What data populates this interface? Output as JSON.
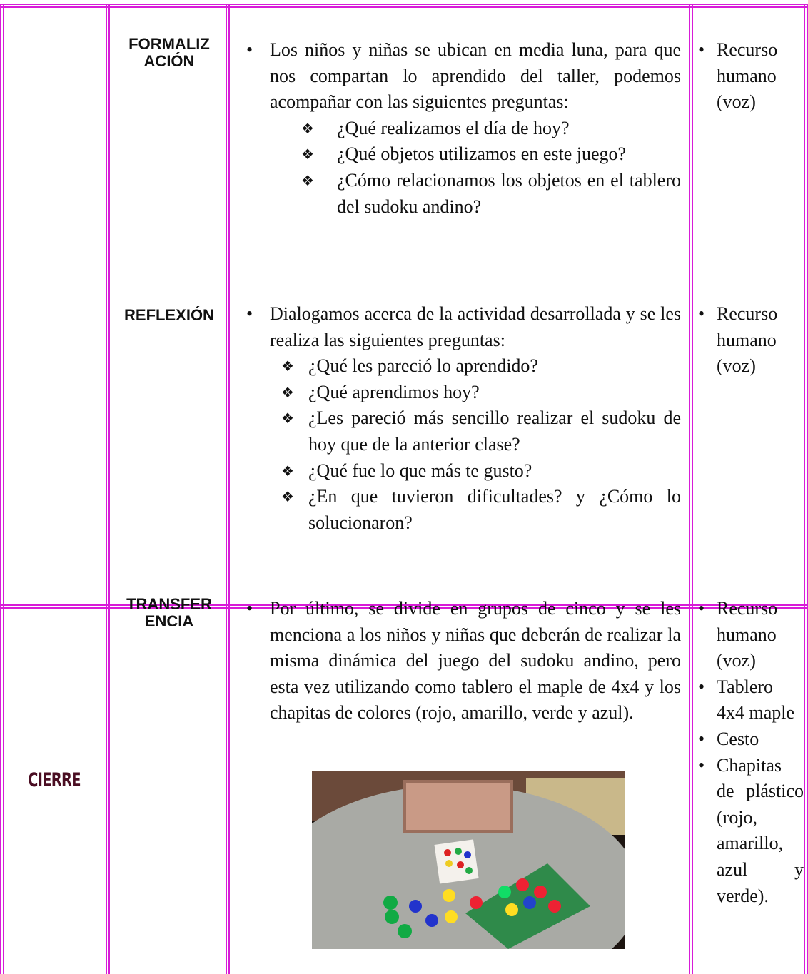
{
  "table": {
    "rows": [
      {
        "sections": [
          {
            "title_lines": [
              "FORMALIZ",
              "ACIÓN"
            ],
            "text": "Los niños y niñas se ubican en media luna, para que nos compartan lo aprendido del taller, podemos acompañar con las siguientes preguntas:",
            "questions": [
              "¿Qué realizamos el día de hoy?",
              "¿Qué objetos utilizamos en este juego?",
              "¿Cómo relacionamos los objetos en el tablero del sudoku andino?"
            ],
            "resources": [
              "Recurso humano (voz)"
            ]
          },
          {
            "title_lines": [
              "REFLEXIÓN"
            ],
            "text": "Dialogamos acerca de la actividad desarrollada y se les realiza las siguientes preguntas:",
            "questions": [
              "¿Qué les pareció lo aprendido?",
              "¿Qué aprendimos hoy?",
              "¿Les pareció más sencillo realizar el sudoku de hoy que de la anterior clase?",
              "¿Qué fue lo que más te gusto?",
              "¿En que tuvieron dificultades? y ¿Cómo lo solucionaron?"
            ],
            "resources": [
              "Recurso humano (voz)"
            ]
          }
        ]
      },
      {
        "phase": "CIERRE",
        "sections": [
          {
            "title_lines": [
              "TRANSFER",
              "ENCIA"
            ],
            "text": "Por último, se divide en grupos de cinco y se les menciona a los niños y niñas que deberán de realizar la misma dinámica del juego del sudoku andino, pero esta vez utilizando como tablero el maple de 4x4 y los chapitas de colores (rojo, amarillo, verde y azul).",
            "resources": [
              "Recurso humano (voz)",
              "Tablero 4x4 maple",
              "Cesto",
              "Chapitas de plástico (rojo, amarillo, azul y verde)."
            ]
          }
        ]
      }
    ]
  }
}
